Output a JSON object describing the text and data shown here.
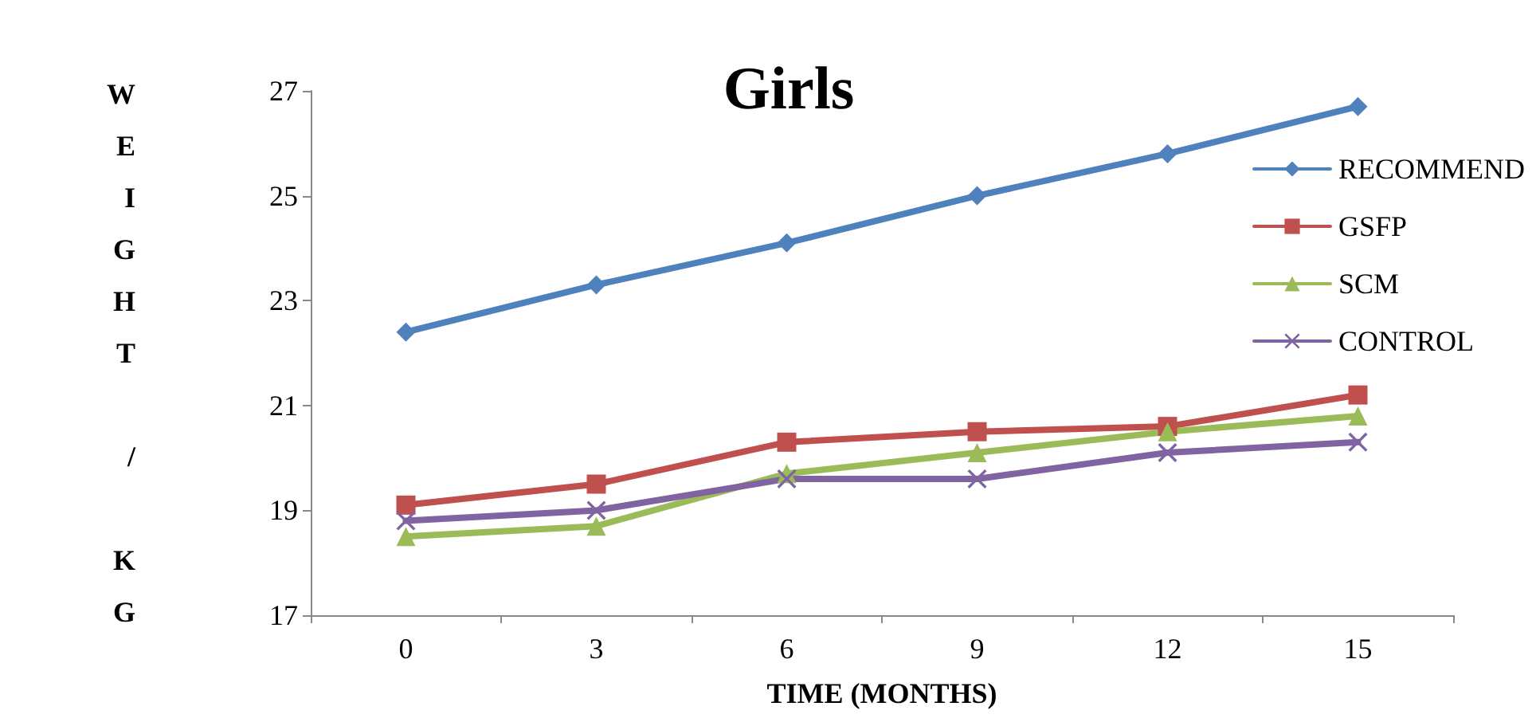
{
  "chart_data": {
    "type": "line",
    "title": "Girls",
    "xlabel": "TIME (MONTHS)",
    "ylabel": "WEIGHT / KG",
    "categories": [
      "0",
      "3",
      "6",
      "9",
      "12",
      "15"
    ],
    "ylim": [
      17,
      27
    ],
    "yticks": [
      17,
      19,
      21,
      23,
      25,
      27
    ],
    "grid": false,
    "legend": "right",
    "line_style": "solid",
    "series": [
      {
        "name": "RECOMMEND",
        "color": "#4f81bd",
        "marker": "diamond",
        "values": [
          22.4,
          23.3,
          24.1,
          25.0,
          25.8,
          26.7
        ]
      },
      {
        "name": "GSFP",
        "color": "#c0504d",
        "marker": "square",
        "values": [
          19.1,
          19.5,
          20.3,
          20.5,
          20.6,
          21.2
        ]
      },
      {
        "name": "SCM",
        "color": "#9bbb59",
        "marker": "triangle",
        "values": [
          18.5,
          18.7,
          19.7,
          20.1,
          20.5,
          20.8
        ]
      },
      {
        "name": "CONTROL",
        "color": "#8064a2",
        "marker": "cross",
        "values": [
          18.8,
          19.0,
          19.6,
          19.6,
          20.1,
          20.3
        ]
      }
    ]
  }
}
